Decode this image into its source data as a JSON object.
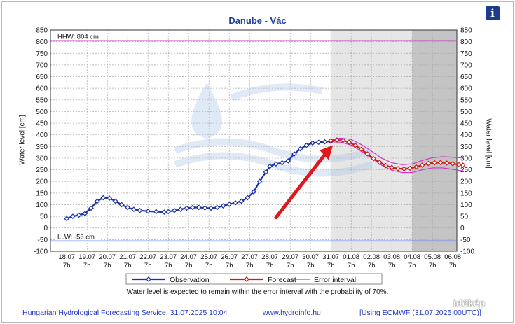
{
  "chart_data": {
    "type": "line",
    "title": "Danube - Vác",
    "ylabel": "Water level [cm]",
    "ylim": [
      -100,
      850
    ],
    "yticks": [
      -100,
      -50,
      0,
      50,
      100,
      150,
      200,
      250,
      300,
      350,
      400,
      450,
      500,
      550,
      600,
      650,
      700,
      750,
      800,
      850
    ],
    "x_dates": [
      "18.07",
      "19.07",
      "20.07",
      "21.07",
      "22.07",
      "23.07",
      "24.07",
      "25.07",
      "26.07",
      "27.07",
      "28.07",
      "29.07",
      "30.07",
      "31.07",
      "01.08",
      "02.08",
      "03.08",
      "04.08",
      "05.08",
      "06.08"
    ],
    "x_hour": "7h",
    "grid": true,
    "legend_position": "bottom",
    "reference_lines": [
      {
        "label": "HHW: 804 cm",
        "value": 804,
        "color": "#c040c0"
      },
      {
        "label": "LLW: -56 cm",
        "value": -56,
        "color": "#5a7cff"
      }
    ],
    "series": [
      {
        "name": "Observation",
        "color": "#1a2fa8",
        "x": [
          0,
          0.3,
          0.6,
          0.9,
          1.2,
          1.5,
          1.8,
          2.1,
          2.4,
          2.7,
          3.0,
          3.3,
          3.6,
          4.0,
          4.4,
          4.8,
          5.0,
          5.3,
          5.6,
          5.9,
          6.2,
          6.5,
          6.8,
          7.1,
          7.4,
          7.7,
          8.0,
          8.3,
          8.6,
          8.9,
          9.2,
          9.5,
          9.8,
          10.0,
          10.3,
          10.6,
          10.9,
          11.2,
          11.5,
          11.8,
          12.1,
          12.4,
          12.7,
          13.0
        ],
        "values": [
          40,
          50,
          55,
          62,
          85,
          115,
          130,
          128,
          115,
          100,
          88,
          80,
          75,
          72,
          70,
          68,
          70,
          75,
          80,
          85,
          88,
          88,
          86,
          85,
          88,
          95,
          102,
          108,
          115,
          130,
          155,
          200,
          240,
          265,
          275,
          280,
          288,
          318,
          340,
          355,
          365,
          368,
          370,
          372
        ]
      },
      {
        "name": "Forecast",
        "color": "#d01818",
        "x": [
          13.0,
          13.3,
          13.6,
          13.9,
          14.2,
          14.5,
          14.8,
          15.1,
          15.4,
          15.7,
          16.0,
          16.3,
          16.6,
          16.9,
          17.2,
          17.5,
          17.8,
          18.1,
          18.4,
          18.7,
          19.0,
          19.3,
          19.5
        ],
        "values": [
          375,
          378,
          376,
          368,
          355,
          338,
          318,
          298,
          282,
          268,
          260,
          255,
          254,
          256,
          262,
          270,
          277,
          280,
          281,
          279,
          276,
          272,
          270
        ]
      },
      {
        "name": "Error interval",
        "color": "#cc33cc",
        "x": [
          13.0,
          13.5,
          14.0,
          14.5,
          15.0,
          15.5,
          16.0,
          16.5,
          17.0,
          17.5,
          18.0,
          18.5,
          19.0,
          19.5
        ],
        "upper": [
          380,
          386,
          380,
          358,
          330,
          300,
          280,
          272,
          275,
          290,
          302,
          306,
          304,
          300
        ],
        "lower": [
          370,
          368,
          356,
          330,
          300,
          270,
          248,
          238,
          238,
          250,
          258,
          258,
          252,
          245
        ]
      }
    ]
  },
  "page": {
    "info_icon": "i",
    "ylabel_left": "Water level [cm]",
    "ylabel_right": "Water level [cm]",
    "note": "Water level is expected to remain within the error interval with the probability of 70%.",
    "footer_service": "Hungarian Hydrological Forecasting Service, 31.07.2025 10:04",
    "footer_url": "www.hydroinfo.hu",
    "footer_model": "[Using ECMWF (31.07.2025 00UTC)]",
    "watermark": "időkép"
  },
  "colors": {
    "plot_bg": "#ffffff",
    "forecast_shade": "#e6e6e6",
    "late_shade": "#c4c4c4",
    "grid": "#a8a8a8",
    "title": "#1f3f9f",
    "annotation_arrow": "#e0181e"
  }
}
